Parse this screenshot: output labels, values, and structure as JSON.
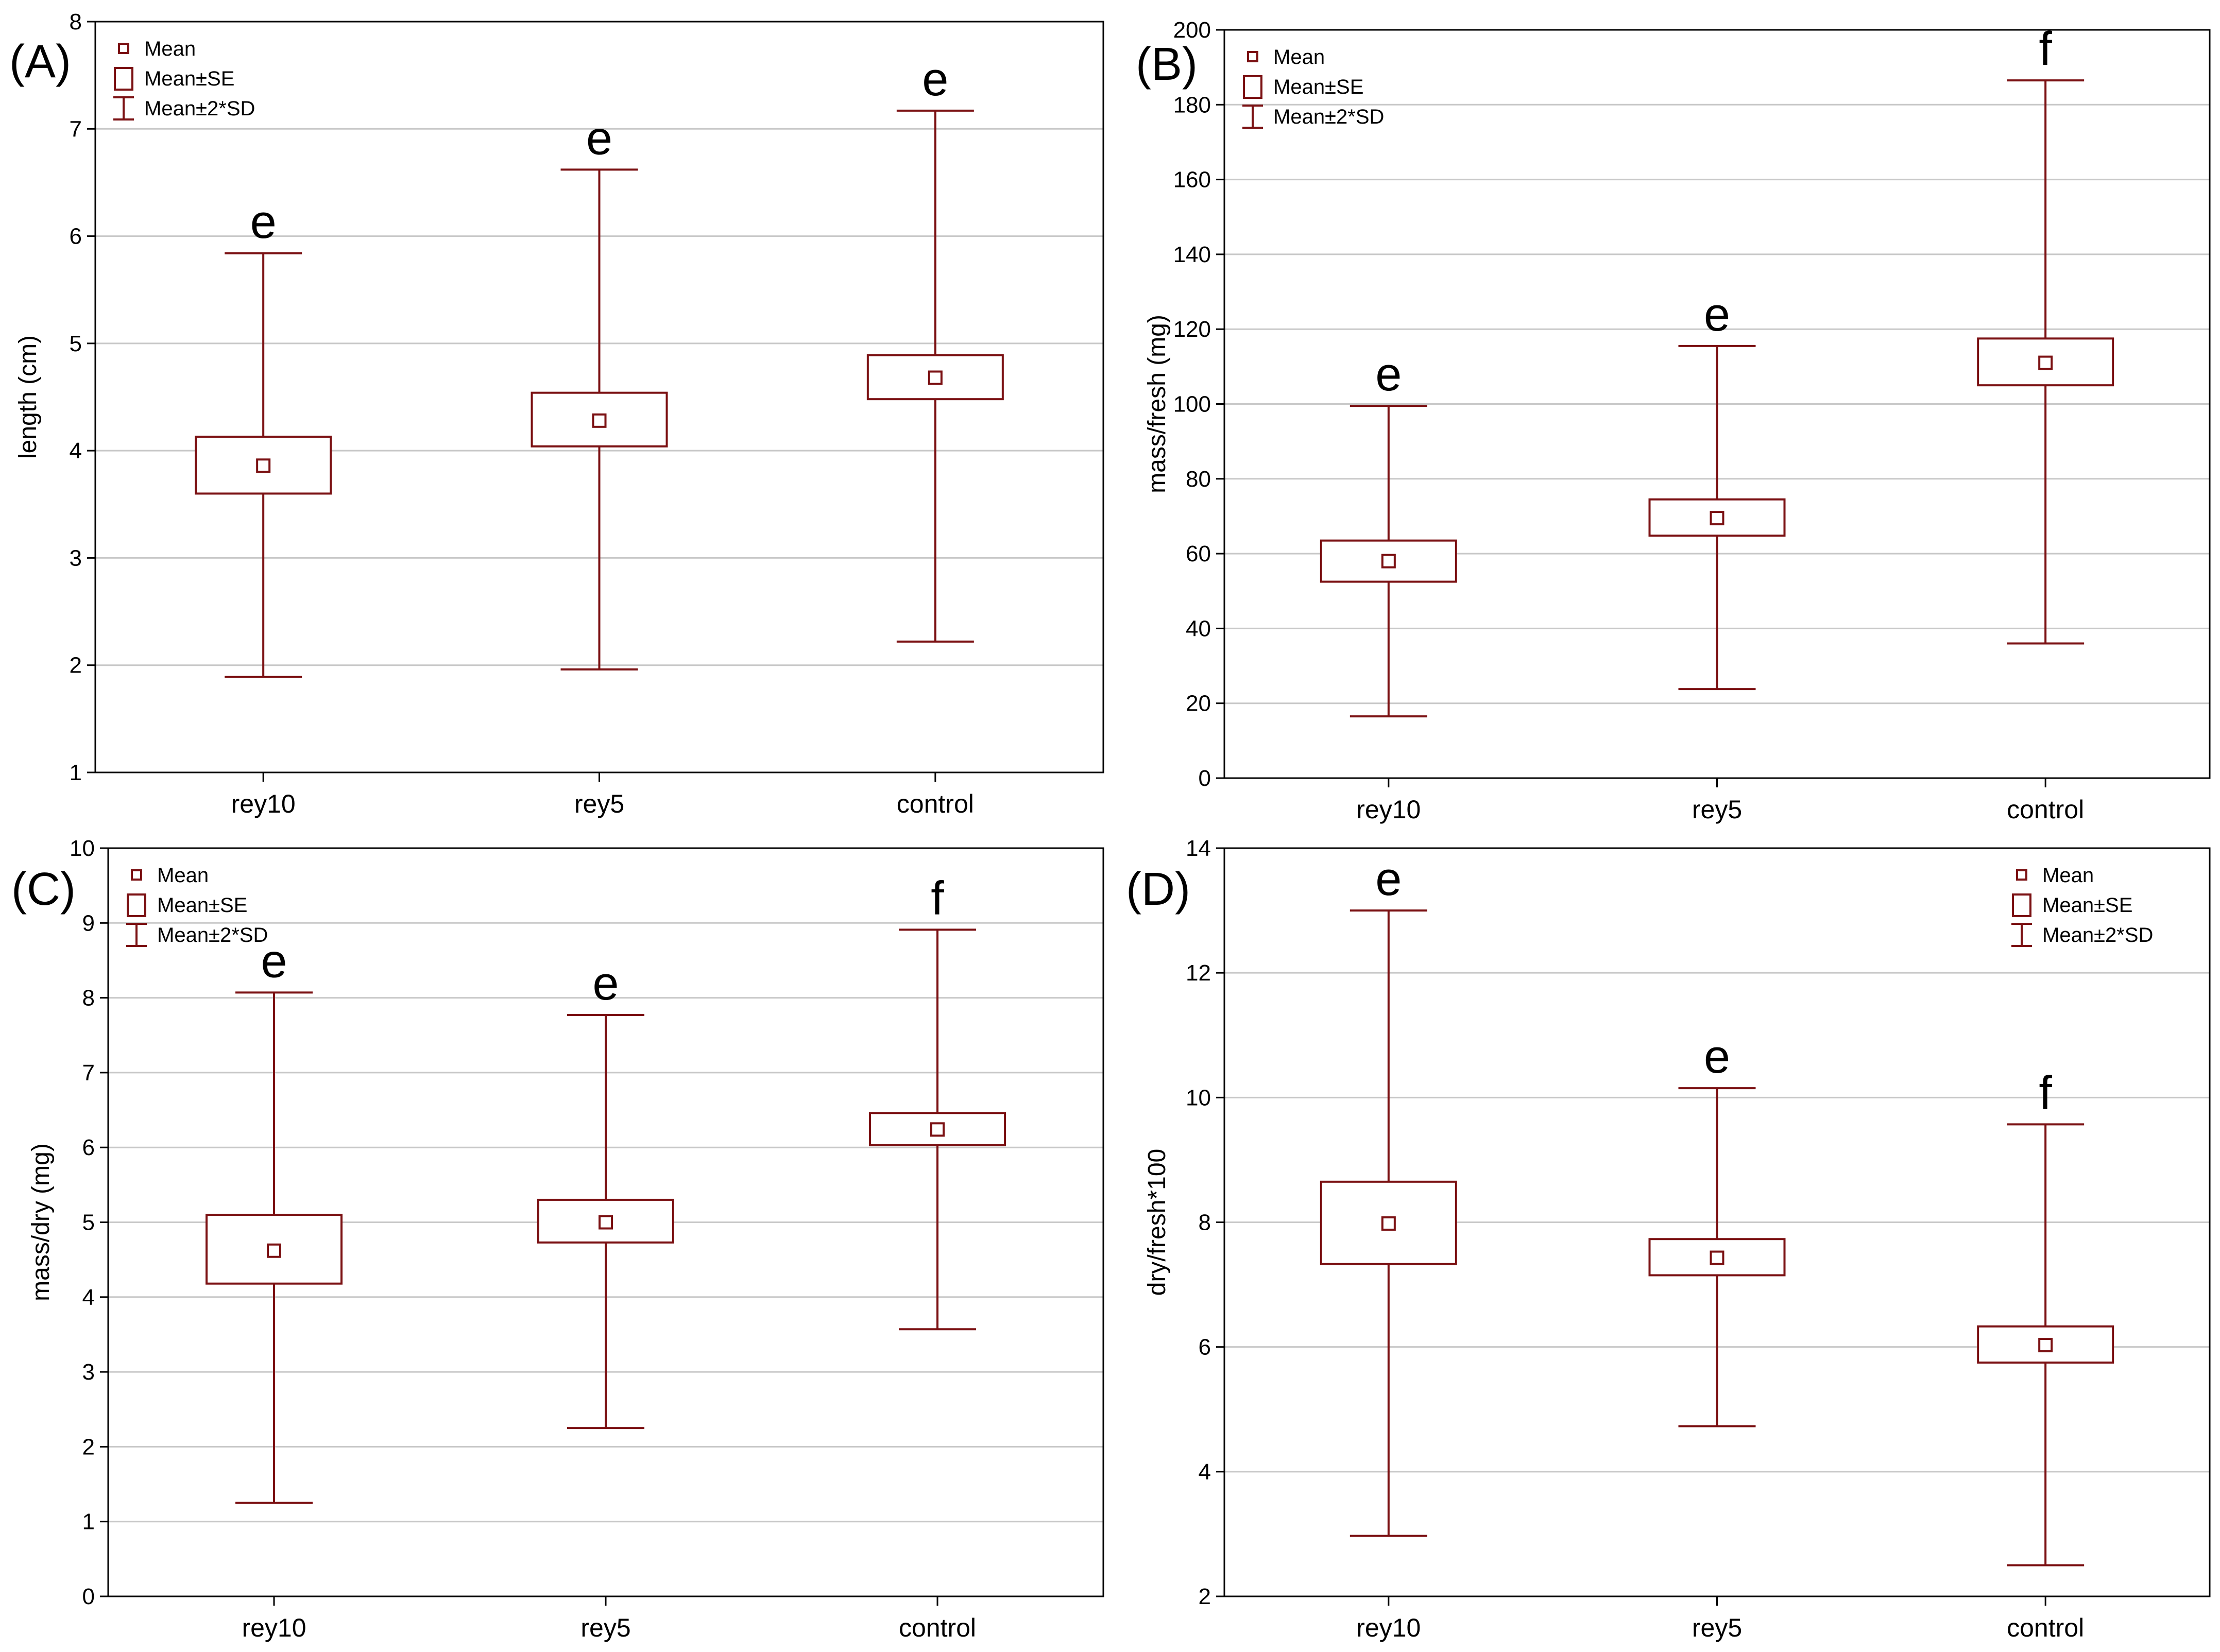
{
  "colors": {
    "accent": "#7b1113",
    "grid": "#c8c8c8",
    "axis": "#000000",
    "background": "#ffffff"
  },
  "chart_data": [
    {
      "type": "box",
      "panel_label": "(A)",
      "ylabel": "length (cm)",
      "ylim": [
        1,
        8
      ],
      "yticks": [
        1,
        2,
        3,
        4,
        5,
        6,
        7,
        8
      ],
      "categories": [
        "rey10",
        "rey5",
        "control"
      ],
      "legend": {
        "position": "top-left",
        "entries": [
          "Mean",
          "Mean±SE",
          "Mean±2*SD"
        ]
      },
      "series": [
        {
          "name": "rey10",
          "mean": 3.86,
          "se_low": 3.6,
          "se_high": 4.13,
          "sd_low": 1.89,
          "sd_high": 5.84,
          "letter": "e"
        },
        {
          "name": "rey5",
          "mean": 4.28,
          "se_low": 4.04,
          "se_high": 4.54,
          "sd_low": 1.96,
          "sd_high": 6.62,
          "letter": "e"
        },
        {
          "name": "control",
          "mean": 4.68,
          "se_low": 4.48,
          "se_high": 4.89,
          "sd_low": 2.22,
          "sd_high": 7.17,
          "letter": "e"
        }
      ]
    },
    {
      "type": "box",
      "panel_label": "(B)",
      "ylabel": "mass/fresh (mg)",
      "ylim": [
        0,
        200
      ],
      "yticks": [
        0,
        20,
        40,
        60,
        80,
        100,
        120,
        140,
        160,
        180,
        200
      ],
      "categories": [
        "rey10",
        "rey5",
        "control"
      ],
      "legend": {
        "position": "top-left",
        "entries": [
          "Mean",
          "Mean±SE",
          "Mean±2*SD"
        ]
      },
      "series": [
        {
          "name": "rey10",
          "mean": 58,
          "se_low": 52.5,
          "se_high": 63.5,
          "sd_low": 16.5,
          "sd_high": 99.5,
          "letter": "e"
        },
        {
          "name": "rey5",
          "mean": 69.5,
          "se_low": 64.8,
          "se_high": 74.5,
          "sd_low": 23.8,
          "sd_high": 115.5,
          "letter": "e"
        },
        {
          "name": "control",
          "mean": 111,
          "se_low": 105,
          "se_high": 117.5,
          "sd_low": 36,
          "sd_high": 186.5,
          "letter": "f"
        }
      ]
    },
    {
      "type": "box",
      "panel_label": "(C)",
      "ylabel": "mass/dry (mg)",
      "ylim": [
        0,
        10
      ],
      "yticks": [
        0,
        1,
        2,
        3,
        4,
        5,
        6,
        7,
        8,
        9,
        10
      ],
      "categories": [
        "rey10",
        "rey5",
        "control"
      ],
      "legend": {
        "position": "top-left",
        "entries": [
          "Mean",
          "Mean±SE",
          "Mean±2*SD"
        ]
      },
      "series": [
        {
          "name": "rey10",
          "mean": 4.62,
          "se_low": 4.18,
          "se_high": 5.1,
          "sd_low": 1.25,
          "sd_high": 8.07,
          "letter": "e"
        },
        {
          "name": "rey5",
          "mean": 5.0,
          "se_low": 4.73,
          "se_high": 5.3,
          "sd_low": 2.25,
          "sd_high": 7.77,
          "letter": "e"
        },
        {
          "name": "control",
          "mean": 6.24,
          "se_low": 6.03,
          "se_high": 6.46,
          "sd_low": 3.57,
          "sd_high": 8.91,
          "letter": "f"
        }
      ]
    },
    {
      "type": "box",
      "panel_label": "(D)",
      "ylabel": "dry/fresh*100",
      "ylim": [
        2,
        14
      ],
      "yticks": [
        2,
        4,
        6,
        8,
        10,
        12,
        14
      ],
      "categories": [
        "rey10",
        "rey5",
        "control"
      ],
      "legend": {
        "position": "top-right",
        "entries": [
          "Mean",
          "Mean±SE",
          "Mean±2*SD"
        ]
      },
      "series": [
        {
          "name": "rey10",
          "mean": 7.98,
          "se_low": 7.33,
          "se_high": 8.65,
          "sd_low": 2.97,
          "sd_high": 13.0,
          "letter": "e"
        },
        {
          "name": "rey5",
          "mean": 7.43,
          "se_low": 7.15,
          "se_high": 7.73,
          "sd_low": 4.73,
          "sd_high": 10.15,
          "letter": "e"
        },
        {
          "name": "control",
          "mean": 6.03,
          "se_low": 5.75,
          "se_high": 6.33,
          "sd_low": 2.5,
          "sd_high": 9.57,
          "letter": "f"
        }
      ]
    }
  ]
}
